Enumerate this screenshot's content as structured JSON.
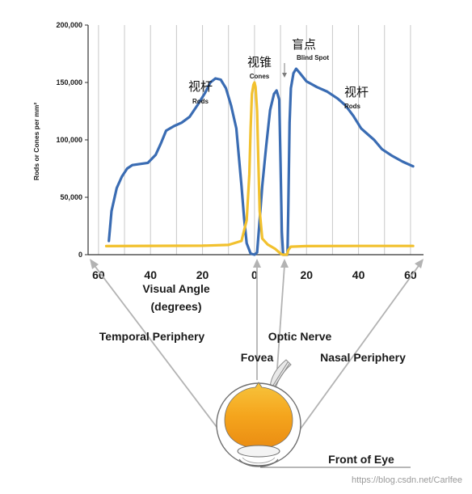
{
  "chart_data": {
    "type": "line",
    "xlabel": "Visual Angle",
    "xlabel_unit": "(degrees)",
    "ylabel": "Rods or Cones per mm²",
    "xlim": [
      -64,
      65
    ],
    "ylim": [
      0,
      200000
    ],
    "x_ticks": [
      -60,
      -40,
      -20,
      0,
      20,
      40,
      60
    ],
    "x_tick_labels": [
      "60",
      "40",
      "20",
      "0",
      "20",
      "40",
      "60"
    ],
    "y_ticks": [
      0,
      50000,
      100000,
      150000,
      200000
    ],
    "y_tick_labels": [
      "0",
      "50,000",
      "100,000",
      "150,000",
      "200,000"
    ],
    "grid": "vertical",
    "series": [
      {
        "name": "Rods",
        "color": "#3a6cb3",
        "points": [
          [
            -56,
            12000
          ],
          [
            -55,
            38000
          ],
          [
            -53,
            58000
          ],
          [
            -51,
            68000
          ],
          [
            -49,
            75000
          ],
          [
            -47,
            78000
          ],
          [
            -44,
            79000
          ],
          [
            -41,
            80000
          ],
          [
            -38,
            87000
          ],
          [
            -36,
            97000
          ],
          [
            -34,
            108000
          ],
          [
            -31,
            112000
          ],
          [
            -28,
            115000
          ],
          [
            -25,
            120000
          ],
          [
            -22,
            130000
          ],
          [
            -19,
            141000
          ],
          [
            -17,
            150000
          ],
          [
            -15,
            153500
          ],
          [
            -13,
            152500
          ],
          [
            -11,
            145000
          ],
          [
            -9,
            130000
          ],
          [
            -7,
            110000
          ],
          [
            -6,
            85000
          ],
          [
            -5,
            60000
          ],
          [
            -4,
            32000
          ],
          [
            -3,
            10000
          ],
          [
            -1.5,
            1000
          ],
          [
            0,
            0
          ],
          [
            1,
            2000
          ],
          [
            1.8,
            25000
          ],
          [
            3,
            60000
          ],
          [
            4.5,
            95000
          ],
          [
            6,
            126000
          ],
          [
            7.5,
            140000
          ],
          [
            8.5,
            143000
          ],
          [
            9.5,
            135000
          ],
          [
            10,
            80000
          ],
          [
            10.5,
            20000
          ],
          [
            11,
            0
          ],
          [
            12.7,
            0
          ],
          [
            13,
            40000
          ],
          [
            13.5,
            115000
          ],
          [
            14,
            145000
          ],
          [
            15,
            158000
          ],
          [
            16,
            162000
          ],
          [
            17.5,
            158000
          ],
          [
            20,
            151000
          ],
          [
            24,
            146000
          ],
          [
            28,
            142000
          ],
          [
            32,
            136000
          ],
          [
            35,
            130000
          ],
          [
            38,
            121000
          ],
          [
            41,
            110000
          ],
          [
            43,
            106000
          ],
          [
            46,
            100000
          ],
          [
            49,
            92000
          ],
          [
            53,
            86000
          ],
          [
            57,
            81000
          ],
          [
            61,
            77000
          ]
        ]
      },
      {
        "name": "Cones",
        "color": "#f2c12e",
        "points": [
          [
            -57,
            7500
          ],
          [
            -20,
            7800
          ],
          [
            -10,
            8500
          ],
          [
            -5,
            12000
          ],
          [
            -3,
            30000
          ],
          [
            -2,
            70000
          ],
          [
            -1.5,
            110000
          ],
          [
            -1,
            140000
          ],
          [
            -0.4,
            148000
          ],
          [
            0,
            150000
          ],
          [
            0.4,
            146000
          ],
          [
            1,
            125000
          ],
          [
            1.5,
            80000
          ],
          [
            2,
            38000
          ],
          [
            3,
            14000
          ],
          [
            5,
            9000
          ],
          [
            8,
            5000
          ],
          [
            10,
            1000
          ],
          [
            10.8,
            0
          ],
          [
            12.5,
            0
          ],
          [
            13,
            4000
          ],
          [
            14,
            7000
          ],
          [
            20,
            7500
          ],
          [
            40,
            7600
          ],
          [
            61,
            7600
          ]
        ]
      }
    ],
    "annotations": [
      {
        "label": "视杆",
        "sub": "Rods",
        "x": -25,
        "y": 145000
      },
      {
        "label": "视锥",
        "sub": "Cones",
        "x": 1,
        "y": 162000
      },
      {
        "label": "盲点",
        "sub": "Blind Spot",
        "x": 15,
        "y": 181000
      },
      {
        "label": "视杆",
        "sub": "Rods",
        "x": 40,
        "y": 142000
      }
    ]
  },
  "diagram": {
    "temporal_periphery": "Temporal Periphery",
    "optic_nerve": "Optic Nerve",
    "fovea": "Fovea",
    "nasal_periphery": "Nasal Periphery",
    "front_of_eye": "Front of Eye"
  },
  "watermark": "https://blog.csdn.net/Carlfee",
  "colors": {
    "rods": "#3a6cb3",
    "cones": "#f2c12e",
    "grid": "#c8c8c8",
    "eye_fill_top": "#f5a31a",
    "eye_fill_bottom": "#f7c43c",
    "arrow": "#b0b0b0"
  }
}
